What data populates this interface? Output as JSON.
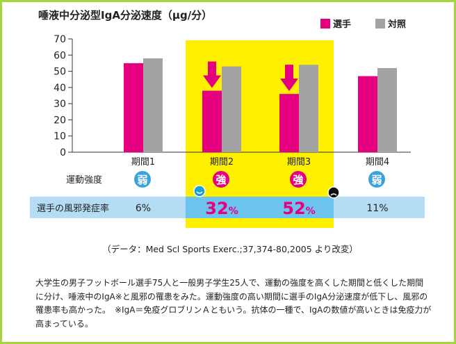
{
  "chart_data": {
    "type": "bar",
    "title": "唾液中分泌型IgA分泌速度（μg/分）",
    "categories": [
      "期間1",
      "期間2",
      "期間3",
      "期間4"
    ],
    "series": [
      {
        "name": "選手",
        "values": [
          55,
          38,
          36,
          47
        ],
        "color": "#e5007f"
      },
      {
        "name": "対照",
        "values": [
          58,
          53,
          54,
          52
        ],
        "color": "#a3a3a3"
      }
    ],
    "ylim": [
      0,
      70
    ],
    "yticks": [
      0,
      10,
      20,
      30,
      40,
      50,
      60,
      70
    ],
    "legend": "top-right",
    "highlight_color": "#fff000",
    "exercise_label": "運動強度",
    "intensity": [
      "弱",
      "強",
      "強",
      "弱"
    ],
    "intensity_colors": {
      "弱": "#3aa3dc",
      "強": "#e5007f"
    },
    "cold_label": "選手の風邪発症率",
    "cold_rates": [
      {
        "value": "6",
        "unit": "%"
      },
      {
        "value": "32",
        "unit": "%"
      },
      {
        "value": "52",
        "unit": "%"
      },
      {
        "value": "11",
        "unit": "%"
      }
    ],
    "source": "（データ：Med Scl Sports Exerc.;37,374-80,2005 より改変）",
    "description": "大学生の男子フットボール選手75人と一般男子学生25人で、運動の強度を高くした期間と低くした期間に分け、唾液中のIgA※と風邪の罹患をみた。運動強度の高い期間に選手のIgA分泌速度が低下し、風邪の罹患率も高かった。　※IgA＝免疫グロブリンＡともいう。抗体の一種で、IgAの数値が高いときは免疫力が高まっている。"
  }
}
